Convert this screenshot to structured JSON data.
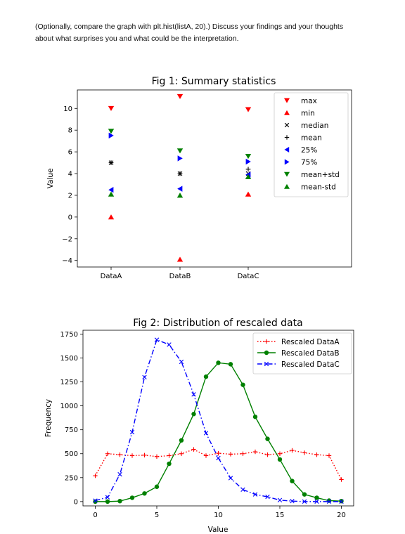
{
  "intro": {
    "line1": "(Optionally, compare the graph with plt.hist(listA, 20).) Discuss your findings and your thoughts",
    "line2": "about what surprises you and what could be the interpretation."
  },
  "chart_data": [
    {
      "type": "scatter",
      "title": "Fig 1: Summary statistics",
      "xlabel": "",
      "ylabel": "Value",
      "categories": [
        "DataA",
        "DataB",
        "DataC"
      ],
      "ylim": [
        -4.6,
        11.7
      ],
      "yticks": [
        -4,
        -2,
        0,
        2,
        4,
        6,
        8,
        10
      ],
      "legend_position": "upper right",
      "series": [
        {
          "name": "max",
          "marker": "triangle-down",
          "color": "#ff0000",
          "values": [
            10.0,
            11.1,
            9.9
          ]
        },
        {
          "name": "min",
          "marker": "triangle-up",
          "color": "#ff0000",
          "values": [
            0.0,
            -3.9,
            2.1
          ]
        },
        {
          "name": "median",
          "marker": "x",
          "color": "#000000",
          "values": [
            5.0,
            4.0,
            4.0
          ]
        },
        {
          "name": "mean",
          "marker": "plus",
          "color": "#000000",
          "values": [
            5.0,
            4.0,
            4.4
          ]
        },
        {
          "name": "25%",
          "marker": "triangle-left",
          "color": "#0000ff",
          "values": [
            2.5,
            2.6,
            3.9
          ]
        },
        {
          "name": "75%",
          "marker": "triangle-right",
          "color": "#0000ff",
          "values": [
            7.5,
            5.4,
            5.1
          ]
        },
        {
          "name": "mean+std",
          "marker": "triangle-down",
          "color": "#008000",
          "values": [
            7.9,
            6.1,
            5.6
          ]
        },
        {
          "name": "mean-std",
          "marker": "triangle-up",
          "color": "#008000",
          "values": [
            2.1,
            2.0,
            3.7
          ]
        }
      ]
    },
    {
      "type": "line",
      "title": "Fig 2: Distribution of rescaled data",
      "xlabel": "Value",
      "ylabel": "Frequency",
      "xlim": [
        -1,
        21
      ],
      "ylim": [
        -45,
        1790
      ],
      "xticks": [
        0,
        5,
        10,
        15,
        20
      ],
      "yticks": [
        0,
        250,
        500,
        750,
        1000,
        1250,
        1500,
        1750
      ],
      "legend_position": "upper right",
      "x": [
        0,
        1,
        2,
        3,
        4,
        5,
        6,
        7,
        8,
        9,
        10,
        11,
        12,
        13,
        14,
        15,
        16,
        17,
        18,
        19,
        20
      ],
      "series": [
        {
          "name": "Rescaled DataA",
          "color": "#ff0000",
          "linestyle": "dotted",
          "marker": "plus",
          "values": [
            270,
            500,
            490,
            480,
            485,
            470,
            480,
            500,
            545,
            480,
            505,
            495,
            500,
            520,
            490,
            500,
            535,
            510,
            490,
            480,
            230
          ]
        },
        {
          "name": "Rescaled DataB",
          "color": "#008000",
          "linestyle": "solid",
          "marker": "circle",
          "values": [
            0,
            0,
            5,
            40,
            85,
            155,
            395,
            640,
            915,
            1305,
            1450,
            1435,
            1220,
            885,
            655,
            440,
            215,
            75,
            40,
            10,
            5
          ]
        },
        {
          "name": "Rescaled DataC",
          "color": "#0000ff",
          "linestyle": "dashdot",
          "marker": "x",
          "values": [
            10,
            45,
            285,
            725,
            1300,
            1690,
            1640,
            1460,
            1120,
            715,
            455,
            245,
            125,
            75,
            50,
            15,
            5,
            0,
            0,
            0,
            0
          ]
        }
      ]
    }
  ]
}
